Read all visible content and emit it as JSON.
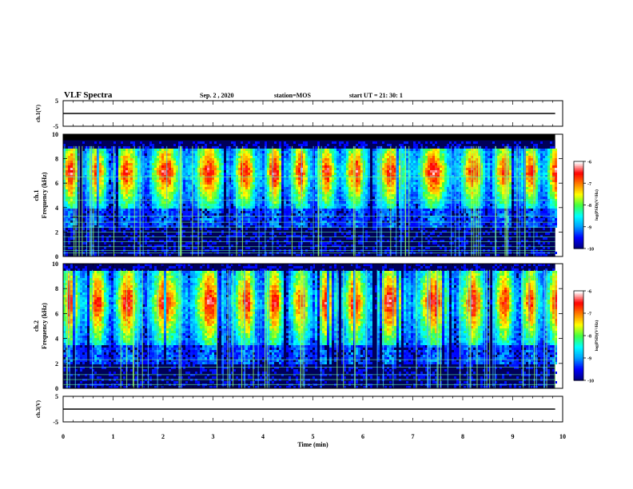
{
  "header": {
    "title": "VLF Spectra",
    "date": "Sep. 2 , 2020",
    "station": "station=MOS",
    "start_ut": "start UT =  21: 30: 1"
  },
  "chart_data": {
    "type": "heatmap",
    "title": "VLF Spectra",
    "xlabel": "Time (min)",
    "x_ticks": [
      "0",
      "1",
      "2",
      "3",
      "4",
      "5",
      "6",
      "7",
      "8",
      "9",
      "10"
    ],
    "xlim": [
      0,
      10
    ],
    "data_end_min": 9.85,
    "panels": [
      {
        "kind": "waveform",
        "ylabel": "ch.1(V)",
        "ylim": [
          -5,
          5
        ],
        "y_ticks": [
          "5",
          "-5"
        ],
        "level": 0
      },
      {
        "kind": "spectrogram",
        "ylabel_top": "ch.1",
        "ylabel": "Frequency (kHz)",
        "ylim": [
          0,
          10
        ],
        "y_ticks": [
          "0",
          "2",
          "4",
          "6",
          "8",
          "10"
        ],
        "cutoff_khz": 9.5,
        "emission_band_khz": [
          4,
          9
        ],
        "peak_khz": 7,
        "colorbar": {
          "label": "log(PSD)(V²/Hz)",
          "ticks": [
            "-6",
            "-7",
            "-8",
            "-9",
            "-10"
          ],
          "range": [
            -10,
            -6
          ]
        }
      },
      {
        "kind": "spectrogram",
        "ylabel_top": "ch.2",
        "ylabel": "Frequency (kHz)",
        "ylim": [
          0,
          10
        ],
        "y_ticks": [
          "0",
          "2",
          "4",
          "6",
          "8",
          "10"
        ],
        "cutoff_khz": 10,
        "emission_band_khz": [
          3.5,
          9.5
        ],
        "peak_khz": 7,
        "colorbar": {
          "label": "log(PSD)(V²/Hz)",
          "ticks": [
            "-6",
            "-7",
            "-8",
            "-9",
            "-10"
          ],
          "range": [
            -10,
            -6
          ]
        }
      },
      {
        "kind": "waveform",
        "ylabel": "ch.3(V)",
        "ylim": [
          -5,
          5
        ],
        "y_ticks": [
          "5",
          "-5"
        ],
        "level": 0
      }
    ],
    "colorscale": [
      "#000080",
      "#0000ff",
      "#00a0ff",
      "#00ffff",
      "#40ff40",
      "#ffff00",
      "#ff8000",
      "#ff0000",
      "#ffffff"
    ]
  }
}
